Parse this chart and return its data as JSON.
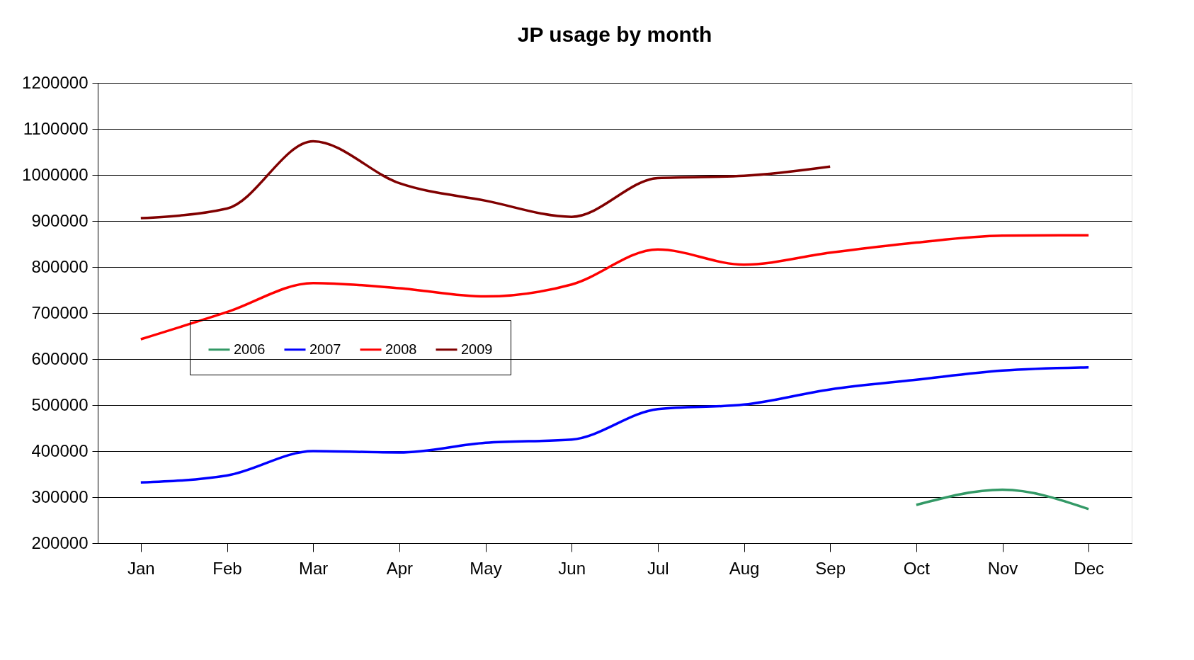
{
  "chart_data": {
    "type": "line",
    "title": "JP usage by month",
    "categories": [
      "Jan",
      "Feb",
      "Mar",
      "Apr",
      "May",
      "Jun",
      "Jul",
      "Aug",
      "Sep",
      "Oct",
      "Nov",
      "Dec"
    ],
    "series": [
      {
        "name": "2006",
        "color": "#339966",
        "values": [
          null,
          null,
          null,
          null,
          null,
          null,
          null,
          null,
          null,
          283000,
          316000,
          274000
        ]
      },
      {
        "name": "2007",
        "color": "#0000ff",
        "values": [
          332000,
          347000,
          400000,
          397000,
          418000,
          425000,
          491000,
          501000,
          534000,
          555000,
          575000,
          582000
        ]
      },
      {
        "name": "2008",
        "color": "#ff0000",
        "values": [
          643000,
          702000,
          765000,
          754000,
          736000,
          762000,
          838000,
          805000,
          831000,
          853000,
          868000,
          869000
        ]
      },
      {
        "name": "2009",
        "color": "#800000",
        "values": [
          906000,
          927000,
          1073000,
          982000,
          944000,
          909000,
          993000,
          998000,
          1018000,
          null,
          null,
          null
        ]
      }
    ],
    "ylim": [
      200000,
      1200000
    ],
    "yticks": [
      200000,
      300000,
      400000,
      500000,
      600000,
      700000,
      800000,
      900000,
      1000000,
      1100000,
      1200000
    ],
    "grid": "y",
    "legend": "left",
    "marker": "none",
    "line_style": "solid"
  }
}
